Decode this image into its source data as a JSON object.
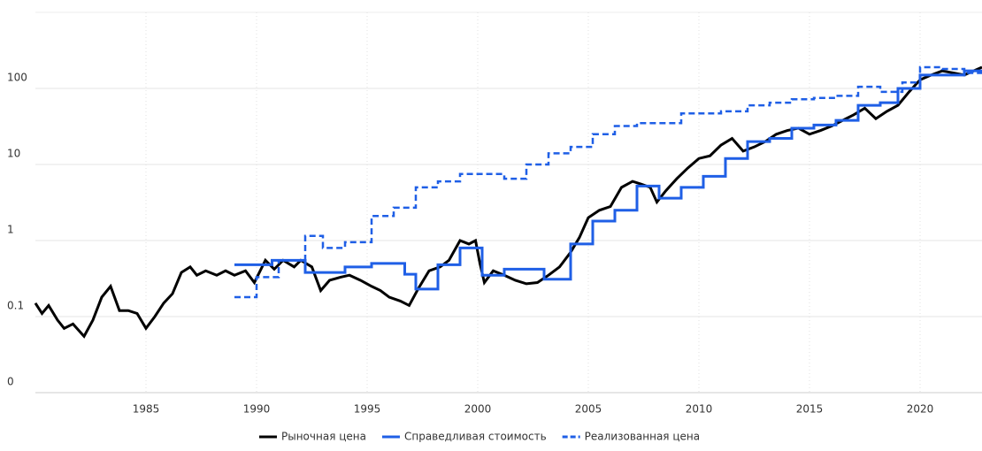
{
  "chart_data": {
    "type": "line",
    "log_scale": true,
    "grid": true,
    "step_series": [
      1,
      2
    ],
    "xlim": [
      1980,
      2022.8
    ],
    "xticks": [
      1985,
      1990,
      1995,
      2000,
      2005,
      2010,
      2015,
      2020
    ],
    "ylim": [
      0.01,
      1000
    ],
    "yticks": [
      {
        "value": 0.01,
        "label": "0"
      },
      0.1,
      1,
      10,
      100
    ],
    "series": [
      {
        "name": "Рыночная цена",
        "color": "#000000",
        "dash": false,
        "x": [
          1980.0,
          1980.3,
          1980.6,
          1981.0,
          1981.3,
          1981.7,
          1982.2,
          1982.6,
          1983.0,
          1983.4,
          1983.8,
          1984.2,
          1984.6,
          1985.0,
          1985.4,
          1985.8,
          1986.2,
          1986.6,
          1987.0,
          1987.3,
          1987.7,
          1988.2,
          1988.6,
          1989.0,
          1989.5,
          1989.9,
          1990.4,
          1990.8,
          1991.2,
          1991.7,
          1992.0,
          1992.5,
          1992.9,
          1993.3,
          1993.8,
          1994.2,
          1994.7,
          1995.2,
          1995.6,
          1996.0,
          1996.5,
          1996.9,
          1997.3,
          1997.8,
          1998.3,
          1998.7,
          1999.2,
          1999.6,
          1999.9,
          2000.1,
          2000.3,
          2000.7,
          2001.2,
          2001.7,
          2002.2,
          2002.7,
          2003.2,
          2003.7,
          2004.2,
          2004.6,
          2005.0,
          2005.5,
          2006.0,
          2006.5,
          2007.0,
          2007.4,
          2007.8,
          2008.1,
          2008.5,
          2009.0,
          2009.5,
          2010.0,
          2010.5,
          2011.0,
          2011.5,
          2012.0,
          2012.5,
          2013.0,
          2013.5,
          2014.0,
          2014.5,
          2015.0,
          2015.5,
          2016.0,
          2016.5,
          2017.0,
          2017.5,
          2018.0,
          2018.5,
          2019.0,
          2019.5,
          2020.0,
          2020.5,
          2021.0,
          2021.5,
          2022.0,
          2022.8
        ],
        "values": [
          0.15,
          0.11,
          0.14,
          0.09,
          0.07,
          0.08,
          0.055,
          0.09,
          0.18,
          0.25,
          0.12,
          0.12,
          0.11,
          0.07,
          0.1,
          0.15,
          0.2,
          0.38,
          0.45,
          0.35,
          0.4,
          0.35,
          0.4,
          0.35,
          0.4,
          0.28,
          0.55,
          0.42,
          0.55,
          0.45,
          0.55,
          0.45,
          0.22,
          0.3,
          0.33,
          0.35,
          0.3,
          0.25,
          0.22,
          0.18,
          0.16,
          0.14,
          0.23,
          0.4,
          0.45,
          0.55,
          1.0,
          0.9,
          1.0,
          0.5,
          0.28,
          0.4,
          0.35,
          0.3,
          0.27,
          0.28,
          0.35,
          0.45,
          0.7,
          1.1,
          2.0,
          2.5,
          2.8,
          5.0,
          6.0,
          5.5,
          5.0,
          3.2,
          4.5,
          6.5,
          9,
          12,
          13,
          18,
          22,
          15,
          17,
          20,
          25,
          28,
          30,
          25,
          28,
          32,
          38,
          45,
          55,
          40,
          50,
          60,
          90,
          130,
          150,
          170,
          160,
          150,
          190
        ]
      },
      {
        "name": "Справедливая стоимость",
        "color": "#1f5fe6",
        "dash": false,
        "x": [
          1989.0,
          1990.7,
          1992.2,
          1994.0,
          1995.2,
          1996.7,
          1997.2,
          1998.2,
          1999.2,
          2000.2,
          2001.2,
          2003.0,
          2004.2,
          2005.2,
          2006.2,
          2007.2,
          2008.2,
          2009.2,
          2010.2,
          2011.2,
          2012.2,
          2013.2,
          2014.2,
          2015.2,
          2016.2,
          2017.2,
          2018.2,
          2019.0,
          2020.0,
          2022.0,
          2022.8
        ],
        "values": [
          0.48,
          0.55,
          0.38,
          0.45,
          0.5,
          0.36,
          0.23,
          0.48,
          0.8,
          0.35,
          0.42,
          0.31,
          0.9,
          1.8,
          2.5,
          5.2,
          3.6,
          5,
          7,
          12,
          20,
          22,
          30,
          33,
          38,
          60,
          65,
          100,
          150,
          170,
          170
        ]
      },
      {
        "name": "Реализованная цена",
        "color": "#1f5fe6",
        "dash": true,
        "x": [
          1989.0,
          1990.0,
          1991.0,
          1992.2,
          1993.0,
          1994.0,
          1995.2,
          1996.2,
          1997.2,
          1998.2,
          1999.2,
          2001.2,
          2002.2,
          2003.2,
          2004.2,
          2005.2,
          2006.2,
          2007.2,
          2008.2,
          2009.2,
          2011.0,
          2012.2,
          2013.2,
          2014.2,
          2015.2,
          2016.2,
          2017.2,
          2018.2,
          2019.2,
          2020.0,
          2021.0,
          2022.0,
          2022.8
        ],
        "values": [
          0.18,
          0.33,
          0.55,
          1.15,
          0.8,
          0.95,
          2.1,
          2.7,
          5,
          6,
          7.5,
          6.5,
          10,
          14,
          17,
          25,
          32,
          35,
          35,
          47,
          50,
          60,
          65,
          72,
          75,
          80,
          105,
          90,
          120,
          190,
          180,
          160,
          160
        ]
      }
    ]
  }
}
